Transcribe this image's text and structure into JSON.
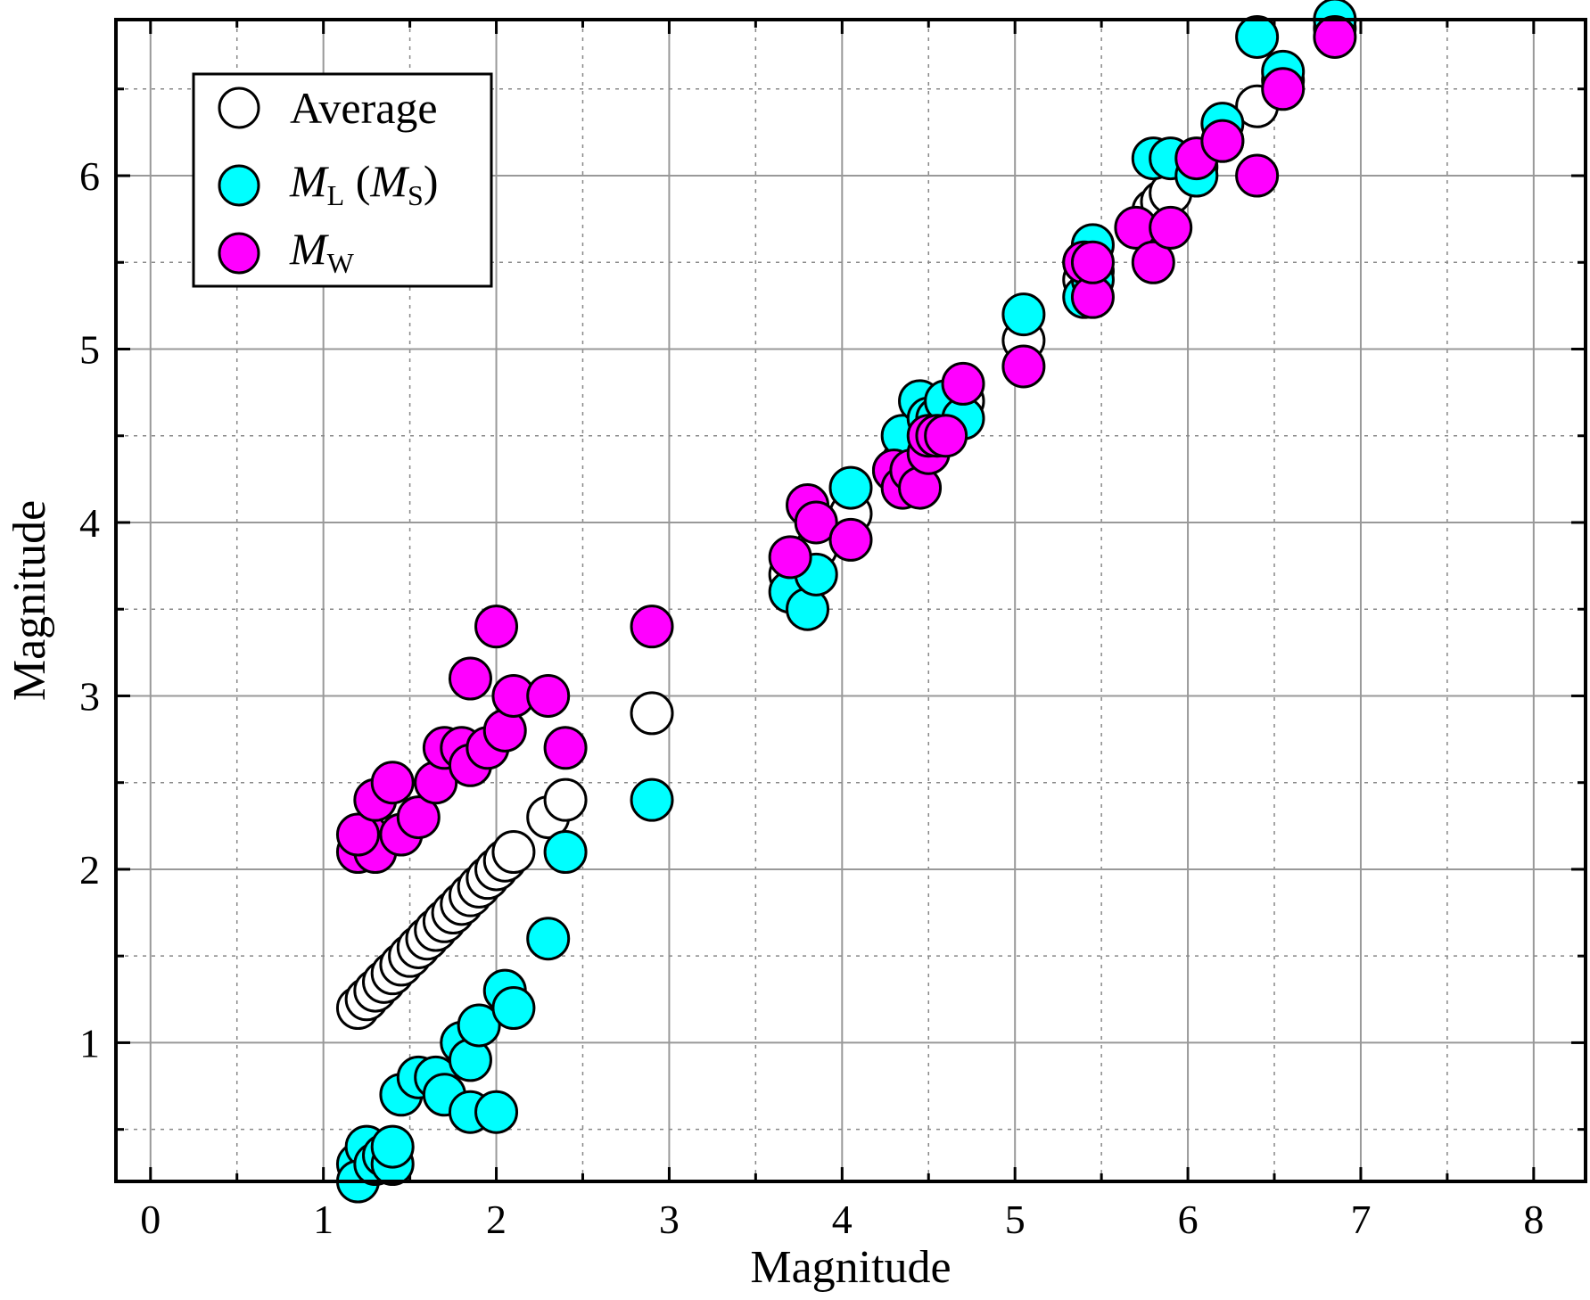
{
  "chart_data": {
    "type": "scatter",
    "title": "",
    "xlabel": "Magnitude",
    "ylabel": "Magnitude",
    "xlim": [
      -0.2,
      8.3
    ],
    "ylim": [
      0.2,
      6.9
    ],
    "xticks": [
      "0",
      "1",
      "2",
      "3",
      "4",
      "5",
      "6",
      "7",
      "8"
    ],
    "yticks": [
      "1",
      "2",
      "3",
      "4",
      "5",
      "6"
    ],
    "grid": true,
    "legend_position": "top-left",
    "colors": {
      "average": "#ffffff",
      "ml": "#00ffff",
      "mw": "#ff00ff",
      "edge": "#000000"
    },
    "legend": [
      {
        "series": "average",
        "label": "Average"
      },
      {
        "series": "ml",
        "label_main": "M",
        "label_sub": "L",
        "label_paren_open": " (",
        "label_main2": "M",
        "label_sub2": "S",
        "label_paren_close": ")"
      },
      {
        "series": "mw",
        "label_main": "M",
        "label_sub": "W"
      }
    ],
    "series": [
      {
        "name": "Average",
        "key": "average",
        "points": [
          [
            1.2,
            1.2
          ],
          [
            1.25,
            1.25
          ],
          [
            1.3,
            1.3
          ],
          [
            1.35,
            1.35
          ],
          [
            1.4,
            1.4
          ],
          [
            1.45,
            1.45
          ],
          [
            1.5,
            1.5
          ],
          [
            1.55,
            1.55
          ],
          [
            1.6,
            1.6
          ],
          [
            1.65,
            1.65
          ],
          [
            1.7,
            1.7
          ],
          [
            1.75,
            1.75
          ],
          [
            1.8,
            1.8
          ],
          [
            1.85,
            1.85
          ],
          [
            1.9,
            1.9
          ],
          [
            1.95,
            1.95
          ],
          [
            2.0,
            2.0
          ],
          [
            2.05,
            2.05
          ],
          [
            2.1,
            2.1
          ],
          [
            2.3,
            2.3
          ],
          [
            2.4,
            2.4
          ],
          [
            2.9,
            2.9
          ],
          [
            3.7,
            3.7
          ],
          [
            3.8,
            3.8
          ],
          [
            3.85,
            3.85
          ],
          [
            4.05,
            4.05
          ],
          [
            4.3,
            4.3
          ],
          [
            4.35,
            4.35
          ],
          [
            4.45,
            4.45
          ],
          [
            4.5,
            4.5
          ],
          [
            4.55,
            4.55
          ],
          [
            4.6,
            4.6
          ],
          [
            4.7,
            4.7
          ],
          [
            5.05,
            5.05
          ],
          [
            5.4,
            5.4
          ],
          [
            5.45,
            5.45
          ],
          [
            5.8,
            5.8
          ],
          [
            5.85,
            5.85
          ],
          [
            5.9,
            5.9
          ],
          [
            6.05,
            6.05
          ],
          [
            6.2,
            6.2
          ],
          [
            6.4,
            6.4
          ],
          [
            6.55,
            6.55
          ],
          [
            6.85,
            6.85
          ]
        ]
      },
      {
        "name": "ML (MS)",
        "key": "ml",
        "points": [
          [
            1.2,
            0.3
          ],
          [
            1.25,
            0.4
          ],
          [
            1.2,
            0.2
          ],
          [
            1.3,
            0.3
          ],
          [
            1.35,
            0.35
          ],
          [
            1.4,
            0.3
          ],
          [
            1.4,
            0.4
          ],
          [
            1.45,
            0.7
          ],
          [
            1.55,
            0.8
          ],
          [
            1.65,
            0.8
          ],
          [
            1.7,
            0.7
          ],
          [
            1.8,
            1.0
          ],
          [
            1.85,
            0.9
          ],
          [
            1.85,
            0.6
          ],
          [
            1.9,
            1.1
          ],
          [
            2.0,
            0.6
          ],
          [
            2.05,
            1.3
          ],
          [
            2.1,
            1.2
          ],
          [
            2.3,
            1.6
          ],
          [
            2.4,
            2.1
          ],
          [
            2.9,
            2.4
          ],
          [
            3.7,
            3.6
          ],
          [
            3.8,
            3.5
          ],
          [
            3.85,
            3.7
          ],
          [
            4.05,
            4.2
          ],
          [
            4.35,
            4.5
          ],
          [
            4.45,
            4.7
          ],
          [
            4.5,
            4.6
          ],
          [
            4.55,
            4.6
          ],
          [
            4.6,
            4.7
          ],
          [
            4.7,
            4.6
          ],
          [
            5.05,
            5.2
          ],
          [
            5.4,
            5.3
          ],
          [
            5.4,
            5.5
          ],
          [
            5.45,
            5.6
          ],
          [
            5.45,
            5.4
          ],
          [
            5.8,
            6.1
          ],
          [
            5.9,
            6.1
          ],
          [
            6.05,
            6.0
          ],
          [
            6.2,
            6.3
          ],
          [
            6.4,
            6.8
          ],
          [
            6.55,
            6.6
          ],
          [
            6.85,
            6.9
          ]
        ]
      },
      {
        "name": "MW",
        "key": "mw",
        "points": [
          [
            1.2,
            2.1
          ],
          [
            1.25,
            2.2
          ],
          [
            1.3,
            2.1
          ],
          [
            1.2,
            2.2
          ],
          [
            1.3,
            2.4
          ],
          [
            1.4,
            2.5
          ],
          [
            1.45,
            2.2
          ],
          [
            1.55,
            2.3
          ],
          [
            1.65,
            2.5
          ],
          [
            1.7,
            2.7
          ],
          [
            1.8,
            2.7
          ],
          [
            1.85,
            2.6
          ],
          [
            1.85,
            3.1
          ],
          [
            1.95,
            2.7
          ],
          [
            2.0,
            3.4
          ],
          [
            2.05,
            2.8
          ],
          [
            2.1,
            3.0
          ],
          [
            2.3,
            3.0
          ],
          [
            2.4,
            2.7
          ],
          [
            2.9,
            3.4
          ],
          [
            3.7,
            3.8
          ],
          [
            3.8,
            4.1
          ],
          [
            3.85,
            4.0
          ],
          [
            4.05,
            3.9
          ],
          [
            4.3,
            4.3
          ],
          [
            4.35,
            4.2
          ],
          [
            4.4,
            4.3
          ],
          [
            4.45,
            4.2
          ],
          [
            4.5,
            4.4
          ],
          [
            4.5,
            4.5
          ],
          [
            4.55,
            4.5
          ],
          [
            4.6,
            4.5
          ],
          [
            4.7,
            4.8
          ],
          [
            5.05,
            4.9
          ],
          [
            5.4,
            5.5
          ],
          [
            5.45,
            5.3
          ],
          [
            5.45,
            5.5
          ],
          [
            5.7,
            5.7
          ],
          [
            5.8,
            5.5
          ],
          [
            5.9,
            5.7
          ],
          [
            6.05,
            6.1
          ],
          [
            6.2,
            6.2
          ],
          [
            6.4,
            6.0
          ],
          [
            6.55,
            6.5
          ],
          [
            6.85,
            6.8
          ]
        ]
      }
    ]
  }
}
